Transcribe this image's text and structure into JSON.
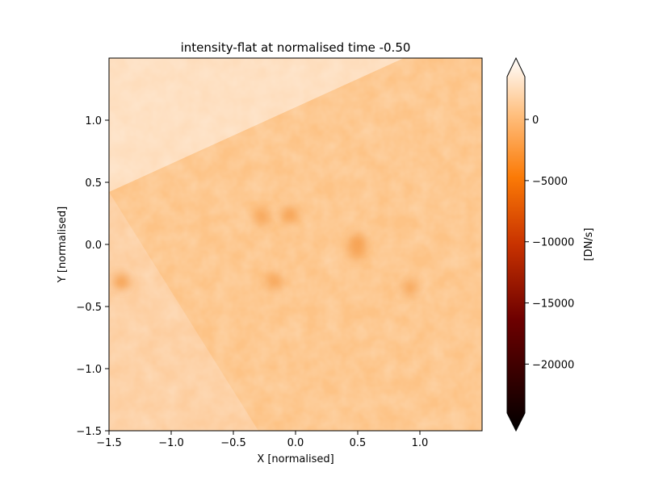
{
  "chart_data": {
    "type": "heatmap",
    "title": "intensity-flat at normalised time -0.50",
    "xlabel": "X [normalised]",
    "ylabel": "Y [normalised]",
    "xlim": [
      -1.5,
      1.5
    ],
    "ylim": [
      -1.5,
      1.5
    ],
    "xticks": [
      -1.5,
      -1.0,
      -0.5,
      0.0,
      0.5,
      1.0
    ],
    "xtick_labels": [
      "−1.5",
      "−1.0",
      "−0.5",
      "0.0",
      "0.5",
      "1.0"
    ],
    "yticks": [
      -1.5,
      -1.0,
      -0.5,
      0.0,
      0.5,
      1.0
    ],
    "ytick_labels": [
      "−1.5",
      "−1.0",
      "−0.5",
      "0.0",
      "0.5",
      "1.0"
    ],
    "grid": false,
    "colormap": "gist_heat",
    "background_value": -1200,
    "colorbar": {
      "label": "[DN/s]",
      "range": [
        -24000,
        3500
      ],
      "extend": "both",
      "ticks": [
        0,
        -5000,
        -10000,
        -15000,
        -20000
      ],
      "tick_labels": [
        "0",
        "−5000",
        "−10000",
        "−15000",
        "−20000"
      ]
    },
    "features": [
      {
        "kind": "region",
        "name": "brighter upper-left tile",
        "value": -400
      },
      {
        "kind": "region",
        "name": "slightly brighter lower-left tile",
        "value": -900
      },
      {
        "kind": "blob",
        "x": -1.4,
        "y": -0.3,
        "value": -3000
      },
      {
        "kind": "blob",
        "x": -0.27,
        "y": 0.22,
        "value": -2300
      },
      {
        "kind": "blob",
        "x": -0.05,
        "y": 0.24,
        "value": -2700
      },
      {
        "kind": "blob",
        "x": 0.5,
        "y": 0.02,
        "value": -2800
      },
      {
        "kind": "blob",
        "x": 0.49,
        "y": -0.05,
        "value": -2300
      },
      {
        "kind": "blob",
        "x": -0.17,
        "y": -0.3,
        "value": -2300
      },
      {
        "kind": "blob",
        "x": 0.92,
        "y": -0.35,
        "value": -2000
      }
    ]
  }
}
